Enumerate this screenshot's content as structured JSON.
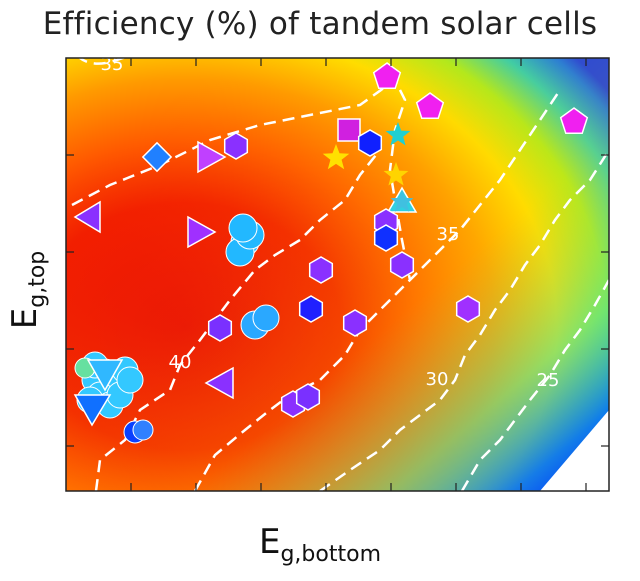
{
  "chart_data": {
    "type": "heatmap",
    "title": "Efficiency (%) of tandem solar cells",
    "xlabel_main": "E",
    "xlabel_sub": "g,bottom",
    "ylabel_main": "E",
    "ylabel_sub": "g,top",
    "contours": [
      {
        "level": "35",
        "color": "#ffffff"
      },
      {
        "level": "35",
        "color": "#ffffff"
      },
      {
        "level": "40",
        "color": "#ffffff"
      },
      {
        "level": "30",
        "color": "#ffffff"
      },
      {
        "level": "25",
        "color": "#ffffff"
      }
    ],
    "colormap": [
      "#e8000a",
      "#ff4000",
      "#ff8a00",
      "#ffd400",
      "#c8f000",
      "#40e080",
      "#00b0ff",
      "#0040ff",
      "#ffffff"
    ],
    "grid": false,
    "legend": "none"
  }
}
